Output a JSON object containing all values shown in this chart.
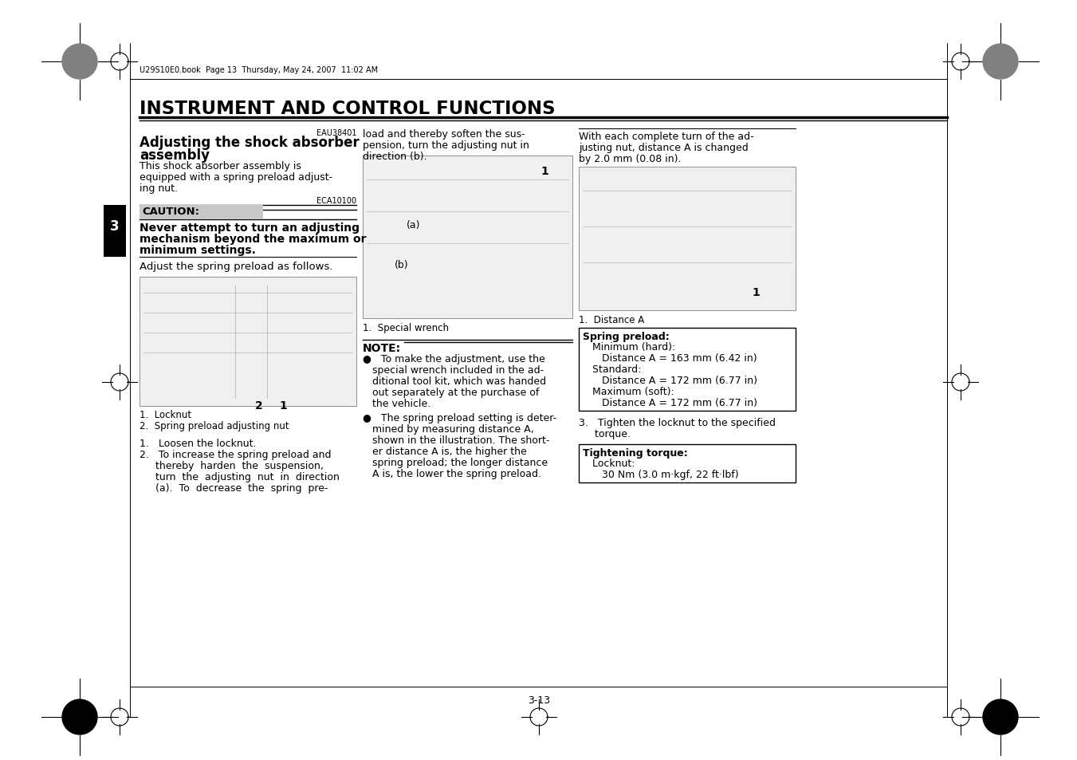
{
  "page_bg": "#ffffff",
  "title": "INSTRUMENT AND CONTROL FUNCTIONS",
  "section_code": "EAU38401",
  "section_title_line1": "Adjusting the shock absorber",
  "section_title_line2": "assembly",
  "body_text": "This shock absorber assembly is\nequipped with a spring preload adjust-\ning nut.",
  "caution_code": "ECA10100",
  "caution_title": "CAUTION:",
  "caution_body_line1": "Never attempt to turn an adjusting",
  "caution_body_line2": "mechanism beyond the maximum or",
  "caution_body_line3": "minimum settings.",
  "adjust_text": "Adjust the spring preload as follows.",
  "fig1_num1": "2",
  "fig1_num2": "1",
  "fig1_label1": "1.  Locknut",
  "fig1_label2": "2.  Spring preload adjusting nut",
  "step1": "1.   Loosen the locknut.",
  "step2_line1": "2.   To increase the spring preload and",
  "step2_line2": "     thereby  harden  the  suspension,",
  "step2_line3": "     turn  the  adjusting  nut  in  direction",
  "step2_line4": "     (a).  To  decrease  the  spring  pre-",
  "col2_cont_line1": "load and thereby soften the sus-",
  "col2_cont_line2": "pension, turn the adjusting nut in",
  "col2_cont_line3": "direction (b).",
  "fig2_label1": "1",
  "fig2_label_a": "(a)",
  "fig2_label_b": "(b)",
  "fig2_caption": "1.  Special wrench",
  "note_title": "NOTE:",
  "note_bullet1_lines": [
    "●   To make the adjustment, use the",
    "   special wrench included in the ad-",
    "   ditional tool kit, which was handed",
    "   out separately at the purchase of",
    "   the vehicle."
  ],
  "note_bullet2_lines": [
    "●   The spring preload setting is deter-",
    "   mined by measuring distance A,",
    "   shown in the illustration. The short-",
    "   er distance A is, the higher the",
    "   spring preload; the longer distance",
    "   A is, the lower the spring preload."
  ],
  "col3_text_line1": "With each complete turn of the ad-",
  "col3_text_line2": "justing nut, distance A is changed",
  "col3_text_line3": "by 2.0 mm (0.08 in).",
  "fig3_label1": "1",
  "fig3_caption": "1.  Distance A",
  "spring_box_title": "Spring preload:",
  "spring_box_line1": "   Minimum (hard):",
  "spring_box_line2": "      Distance A = 163 mm (6.42 in)",
  "spring_box_line3": "   Standard:",
  "spring_box_line4": "      Distance A = 172 mm (6.77 in)",
  "spring_box_line5": "   Maximum (soft):",
  "spring_box_line6": "      Distance A = 172 mm (6.77 in)",
  "step3_line1": "3.   Tighten the locknut to the specified",
  "step3_line2": "     torque.",
  "torque_box_title": "Tightening torque:",
  "torque_box_line1": "   Locknut:",
  "torque_box_line2": "      30 Nm (3.0 m·kgf, 22 ft·lbf)",
  "page_number": "3-13",
  "chapter_number": "3",
  "header_text": "U29S10E0.book  Page 13  Thursday, May 24, 2007  11:02 AM"
}
